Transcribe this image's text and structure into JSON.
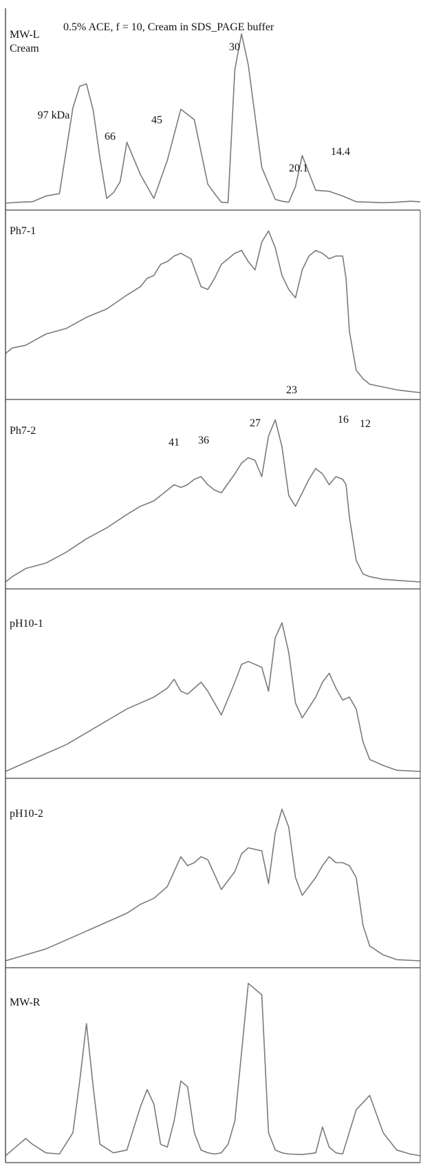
{
  "figure": {
    "title": "0.5% ACE, f = 10, Cream in SDS_PAGE buffer",
    "line_color": "#7a7a7a",
    "frame_color": "#444444"
  },
  "chart_data": [
    {
      "type": "line",
      "panel_label": [
        "MW-L",
        "Cream"
      ],
      "x": [
        0,
        20,
        40,
        60,
        80,
        100,
        110,
        120,
        130,
        140,
        150,
        160,
        170,
        180,
        200,
        220,
        240,
        260,
        280,
        300,
        310,
        320,
        330,
        340,
        350,
        360,
        380,
        400,
        410,
        420,
        430,
        440,
        460,
        480,
        500,
        520,
        540,
        560,
        580,
        600,
        615
      ],
      "y": [
        0,
        2,
        3,
        15,
        20,
        200,
        245,
        250,
        195,
        95,
        10,
        22,
        45,
        128,
        60,
        10,
        90,
        197,
        175,
        40,
        20,
        2,
        1,
        280,
        355,
        290,
        75,
        8,
        4,
        2,
        35,
        100,
        27,
        25,
        15,
        3,
        2,
        1,
        2,
        4,
        3
      ],
      "annotations": [
        "97 kDa",
        "66",
        "45",
        "30",
        "20.1",
        "14.4"
      ],
      "ylim": [
        0,
        400
      ]
    },
    {
      "type": "line",
      "panel_label": [
        "Ph7-1"
      ],
      "x": [
        0,
        10,
        30,
        60,
        90,
        120,
        150,
        180,
        200,
        210,
        220,
        230,
        240,
        250,
        260,
        275,
        290,
        300,
        310,
        320,
        330,
        340,
        350,
        360,
        370,
        380,
        390,
        400,
        410,
        420,
        430,
        440,
        450,
        460,
        470,
        480,
        490,
        500,
        505,
        510,
        520,
        530,
        540,
        560,
        580,
        600,
        615
      ],
      "y": [
        70,
        80,
        85,
        105,
        115,
        135,
        150,
        175,
        190,
        205,
        210,
        230,
        235,
        245,
        250,
        240,
        190,
        185,
        205,
        230,
        240,
        250,
        255,
        235,
        220,
        270,
        290,
        260,
        210,
        185,
        170,
        220,
        245,
        255,
        250,
        240,
        245,
        245,
        205,
        110,
        40,
        25,
        15,
        10,
        5,
        2,
        0
      ],
      "annotations": [],
      "ylim": [
        0,
        320
      ]
    },
    {
      "type": "line",
      "panel_label": [
        "Ph7-2"
      ],
      "x": [
        0,
        10,
        30,
        60,
        90,
        120,
        150,
        180,
        200,
        220,
        240,
        250,
        260,
        270,
        280,
        290,
        300,
        310,
        320,
        340,
        350,
        360,
        370,
        380,
        390,
        400,
        410,
        420,
        430,
        440,
        450,
        460,
        470,
        480,
        490,
        500,
        505,
        510,
        520,
        530,
        540,
        560,
        580,
        615
      ],
      "y": [
        0,
        10,
        25,
        35,
        55,
        80,
        100,
        125,
        140,
        150,
        170,
        180,
        175,
        180,
        190,
        195,
        180,
        170,
        165,
        200,
        220,
        230,
        225,
        195,
        270,
        300,
        250,
        160,
        140,
        165,
        190,
        210,
        200,
        180,
        195,
        190,
        180,
        120,
        40,
        15,
        10,
        5,
        3,
        0
      ],
      "annotations": [
        "41",
        "36",
        "27",
        "23",
        "16",
        "12"
      ],
      "ylim": [
        0,
        330
      ]
    },
    {
      "type": "line",
      "panel_label": [
        "pH10-1"
      ],
      "x": [
        0,
        30,
        60,
        90,
        120,
        150,
        180,
        200,
        220,
        240,
        250,
        260,
        270,
        280,
        290,
        300,
        310,
        320,
        340,
        350,
        360,
        380,
        390,
        400,
        410,
        420,
        430,
        440,
        460,
        470,
        480,
        490,
        500,
        510,
        520,
        530,
        540,
        560,
        580,
        615
      ],
      "y": [
        0,
        15,
        30,
        45,
        65,
        85,
        105,
        115,
        125,
        140,
        155,
        135,
        130,
        140,
        150,
        135,
        115,
        95,
        150,
        180,
        185,
        175,
        135,
        225,
        250,
        200,
        115,
        90,
        125,
        150,
        165,
        140,
        120,
        125,
        105,
        50,
        20,
        10,
        2,
        0
      ],
      "annotations": [],
      "ylim": [
        0,
        300
      ]
    },
    {
      "type": "line",
      "panel_label": [
        "pH10-2"
      ],
      "x": [
        0,
        30,
        60,
        90,
        120,
        150,
        180,
        200,
        220,
        240,
        250,
        260,
        270,
        280,
        290,
        300,
        310,
        320,
        340,
        350,
        360,
        380,
        390,
        400,
        410,
        420,
        430,
        440,
        460,
        470,
        480,
        490,
        500,
        510,
        520,
        530,
        540,
        560,
        580,
        615
      ],
      "y": [
        0,
        10,
        20,
        35,
        50,
        65,
        80,
        95,
        105,
        125,
        150,
        175,
        160,
        165,
        175,
        170,
        145,
        120,
        150,
        180,
        190,
        185,
        130,
        215,
        255,
        225,
        140,
        110,
        140,
        160,
        175,
        165,
        165,
        160,
        140,
        60,
        25,
        10,
        2,
        0
      ],
      "annotations": [],
      "ylim": [
        0,
        300
      ]
    },
    {
      "type": "line",
      "panel_label": [
        "MW-R"
      ],
      "x": [
        0,
        20,
        30,
        40,
        60,
        80,
        100,
        110,
        120,
        130,
        140,
        160,
        180,
        200,
        210,
        220,
        230,
        240,
        250,
        260,
        270,
        280,
        290,
        300,
        310,
        320,
        330,
        340,
        360,
        380,
        390,
        400,
        410,
        420,
        440,
        460,
        470,
        480,
        490,
        500,
        520,
        540,
        560,
        580,
        600,
        615
      ],
      "y": [
        0,
        20,
        30,
        20,
        5,
        3,
        40,
        130,
        230,
        120,
        20,
        5,
        10,
        85,
        115,
        90,
        20,
        15,
        60,
        130,
        120,
        40,
        10,
        5,
        3,
        5,
        20,
        60,
        300,
        280,
        40,
        10,
        5,
        3,
        2,
        5,
        50,
        15,
        5,
        3,
        80,
        105,
        40,
        10,
        3,
        0
      ],
      "annotations": [],
      "ylim": [
        0,
        320
      ]
    }
  ]
}
